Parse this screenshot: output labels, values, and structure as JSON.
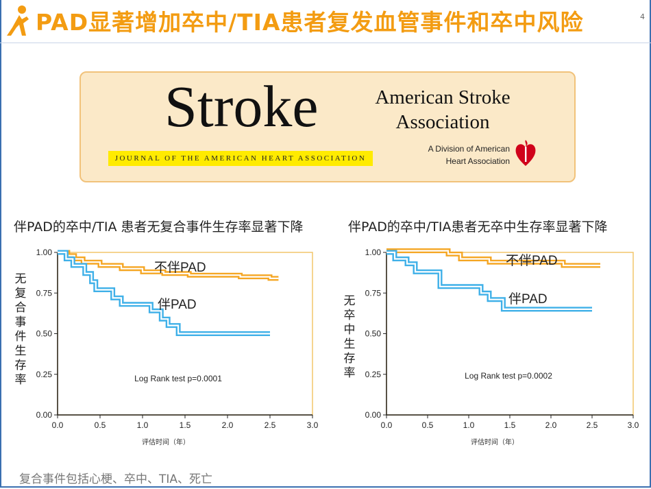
{
  "header": {
    "title": "PAD显著增加卒中/TIA患者复发血管事件和卒中风险",
    "slide_number": "4"
  },
  "banner": {
    "journal_name": "Stroke",
    "journal_subtitle": "JOURNAL OF THE AMERICAN HEART ASSOCIATION",
    "asa_line1": "American Stroke",
    "asa_line2": "Association",
    "division_line1": "A Division of American",
    "division_line2": "Heart Association"
  },
  "footnote": "复合事件包括心梗、卒中、TIA、死亡",
  "chart_data": [
    {
      "type": "line",
      "title": "伴PAD的卒中/TIA 患者无复合事件生存率显著下降",
      "xlabel": "评估时间（年）",
      "ylabel": "无复合事件生存率",
      "xlim": [
        0,
        3.0
      ],
      "ylim": [
        0,
        1.0
      ],
      "x_ticks": [
        "0.0",
        "0.5",
        "1.0",
        "1.5",
        "2.0",
        "2.5",
        "3.0"
      ],
      "y_ticks": [
        "0.00",
        "0.25",
        "0.50",
        "0.75",
        "1.00"
      ],
      "annotation": "Log Rank test p=0.0001",
      "series": [
        {
          "name": "不伴PAD",
          "color": "#f5a623",
          "points": [
            [
              0,
              1.0
            ],
            [
              0.12,
              1.0
            ],
            [
              0.12,
              0.98
            ],
            [
              0.2,
              0.98
            ],
            [
              0.2,
              0.96
            ],
            [
              0.3,
              0.96
            ],
            [
              0.3,
              0.94
            ],
            [
              0.5,
              0.94
            ],
            [
              0.5,
              0.92
            ],
            [
              0.75,
              0.92
            ],
            [
              0.75,
              0.9
            ],
            [
              1.0,
              0.9
            ],
            [
              1.0,
              0.88
            ],
            [
              1.25,
              0.88
            ],
            [
              1.25,
              0.87
            ],
            [
              1.55,
              0.87
            ],
            [
              1.55,
              0.86
            ],
            [
              2.15,
              0.86
            ],
            [
              2.15,
              0.85
            ],
            [
              2.5,
              0.85
            ],
            [
              2.5,
              0.84
            ],
            [
              2.6,
              0.84
            ]
          ]
        },
        {
          "name": "伴PAD",
          "color": "#3fb0e8",
          "points": [
            [
              0,
              1.0
            ],
            [
              0.1,
              1.0
            ],
            [
              0.1,
              0.96
            ],
            [
              0.18,
              0.96
            ],
            [
              0.18,
              0.92
            ],
            [
              0.32,
              0.92
            ],
            [
              0.32,
              0.87
            ],
            [
              0.4,
              0.87
            ],
            [
              0.4,
              0.82
            ],
            [
              0.45,
              0.82
            ],
            [
              0.45,
              0.77
            ],
            [
              0.65,
              0.77
            ],
            [
              0.65,
              0.72
            ],
            [
              0.75,
              0.72
            ],
            [
              0.75,
              0.68
            ],
            [
              1.1,
              0.68
            ],
            [
              1.1,
              0.64
            ],
            [
              1.22,
              0.64
            ],
            [
              1.22,
              0.59
            ],
            [
              1.3,
              0.59
            ],
            [
              1.3,
              0.55
            ],
            [
              1.42,
              0.55
            ],
            [
              1.42,
              0.5
            ],
            [
              2.5,
              0.5
            ]
          ]
        }
      ]
    },
    {
      "type": "line",
      "title": "伴PAD的卒中/TIA患者无卒中生存率显著下降",
      "xlabel": "评估时间（年）",
      "ylabel": "无卒中生存率",
      "xlim": [
        0,
        3.0
      ],
      "ylim": [
        0,
        1.0
      ],
      "x_ticks": [
        "0.0",
        "0.5",
        "1.0",
        "1.5",
        "2.0",
        "2.5",
        "3.0"
      ],
      "y_ticks": [
        "0.00",
        "0.25",
        "0.50",
        "0.75",
        "1.00"
      ],
      "annotation": "Log Rank test p=0.0002",
      "series": [
        {
          "name": "不伴PAD",
          "color": "#f5a623",
          "points": [
            [
              0,
              1.01
            ],
            [
              0.75,
              1.01
            ],
            [
              0.75,
              0.99
            ],
            [
              0.9,
              0.99
            ],
            [
              0.9,
              0.96
            ],
            [
              1.25,
              0.96
            ],
            [
              1.25,
              0.94
            ],
            [
              2.15,
              0.94
            ],
            [
              2.15,
              0.92
            ],
            [
              2.6,
              0.92
            ]
          ]
        },
        {
          "name": "伴PAD",
          "color": "#3fb0e8",
          "points": [
            [
              0,
              1.0
            ],
            [
              0.1,
              1.0
            ],
            [
              0.1,
              0.96
            ],
            [
              0.25,
              0.96
            ],
            [
              0.25,
              0.93
            ],
            [
              0.35,
              0.93
            ],
            [
              0.35,
              0.88
            ],
            [
              0.65,
              0.88
            ],
            [
              0.65,
              0.79
            ],
            [
              1.15,
              0.79
            ],
            [
              1.15,
              0.75
            ],
            [
              1.25,
              0.75
            ],
            [
              1.25,
              0.71
            ],
            [
              1.42,
              0.71
            ],
            [
              1.42,
              0.65
            ],
            [
              2.5,
              0.65
            ]
          ]
        }
      ]
    }
  ]
}
